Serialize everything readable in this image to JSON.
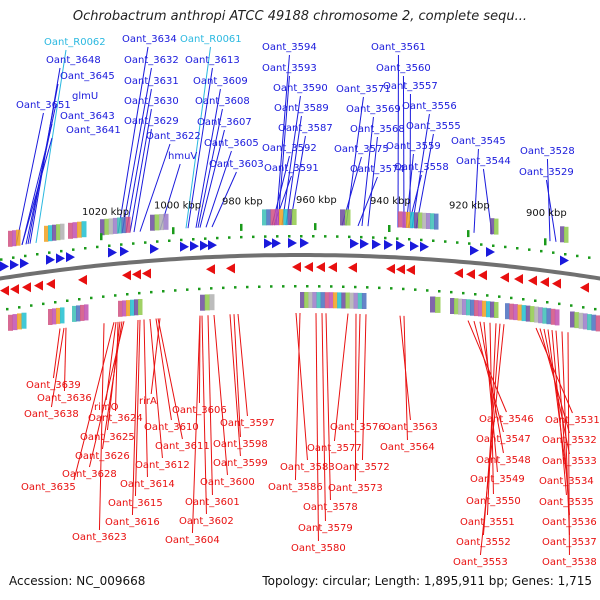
{
  "title": "Ochrobactrum anthropi ATCC 49188 chromosome 2, complete sequ...",
  "footer": {
    "accession": "Accession: NC_009668",
    "summary": "Topology: circular; Length: 1,895,911 bp; Genes: 1,715"
  },
  "colors": {
    "forward": "#1a1adc",
    "reverse": "#e81010",
    "rna": "#2ab8e0",
    "backbone": "#707070",
    "tick": "#1a9a1a"
  },
  "scale_labels": [
    "1020 kbp",
    "1000 kbp",
    "980 kbp",
    "960 kbp",
    "940 kbp",
    "920 kbp",
    "900 kbp"
  ],
  "genes_top": [
    {
      "label": "Oant_R0062",
      "kind": "rna"
    },
    {
      "label": "Oant_3648",
      "kind": "forward"
    },
    {
      "label": "Oant_3645",
      "kind": "forward"
    },
    {
      "label": "glmU",
      "kind": "forward"
    },
    {
      "label": "Oant_3651",
      "kind": "forward"
    },
    {
      "label": "Oant_3643",
      "kind": "forward"
    },
    {
      "label": "Oant_3641",
      "kind": "forward"
    },
    {
      "label": "Oant_3634",
      "kind": "forward"
    },
    {
      "label": "Oant_3632",
      "kind": "forward"
    },
    {
      "label": "Oant_3631",
      "kind": "forward"
    },
    {
      "label": "Oant_3630",
      "kind": "forward"
    },
    {
      "label": "Oant_3629",
      "kind": "forward"
    },
    {
      "label": "Oant_3622",
      "kind": "forward"
    },
    {
      "label": "hmuV",
      "kind": "forward"
    },
    {
      "label": "Oant_R0061",
      "kind": "rna"
    },
    {
      "label": "Oant_3613",
      "kind": "forward"
    },
    {
      "label": "Oant_3609",
      "kind": "forward"
    },
    {
      "label": "Oant_3608",
      "kind": "forward"
    },
    {
      "label": "Oant_3607",
      "kind": "forward"
    },
    {
      "label": "Oant_3605",
      "kind": "forward"
    },
    {
      "label": "Oant_3603",
      "kind": "forward"
    },
    {
      "label": "Oant_3594",
      "kind": "forward"
    },
    {
      "label": "Oant_3593",
      "kind": "forward"
    },
    {
      "label": "Oant_3590",
      "kind": "forward"
    },
    {
      "label": "Oant_3589",
      "kind": "forward"
    },
    {
      "label": "Oant_3587",
      "kind": "forward"
    },
    {
      "label": "Oant_3592",
      "kind": "forward"
    },
    {
      "label": "Oant_3591",
      "kind": "forward"
    },
    {
      "label": "Oant_3571",
      "kind": "forward"
    },
    {
      "label": "Oant_3569",
      "kind": "forward"
    },
    {
      "label": "Oant_3568",
      "kind": "forward"
    },
    {
      "label": "Oant_3575",
      "kind": "forward"
    },
    {
      "label": "Oant_3574",
      "kind": "forward"
    },
    {
      "label": "Oant_3561",
      "kind": "forward"
    },
    {
      "label": "Oant_3560",
      "kind": "forward"
    },
    {
      "label": "Oant_3557",
      "kind": "forward"
    },
    {
      "label": "Oant_3556",
      "kind": "forward"
    },
    {
      "label": "Oant_3555",
      "kind": "forward"
    },
    {
      "label": "Oant_3559",
      "kind": "forward"
    },
    {
      "label": "Oant_3558",
      "kind": "forward"
    },
    {
      "label": "Oant_3545",
      "kind": "forward"
    },
    {
      "label": "Oant_3544",
      "kind": "forward"
    },
    {
      "label": "Oant_3528",
      "kind": "forward"
    },
    {
      "label": "Oant_3529",
      "kind": "forward"
    }
  ],
  "genes_bottom": [
    {
      "label": "Oant_3639"
    },
    {
      "label": "Oant_3636"
    },
    {
      "label": "rimO"
    },
    {
      "label": "Oant_3638"
    },
    {
      "label": "Oant_3624"
    },
    {
      "label": "Oant_3625"
    },
    {
      "label": "Oant_3626"
    },
    {
      "label": "Oant_3628"
    },
    {
      "label": "Oant_3635"
    },
    {
      "label": "rirA"
    },
    {
      "label": "Oant_3606"
    },
    {
      "label": "Oant_3610"
    },
    {
      "label": "Oant_3611"
    },
    {
      "label": "Oant_3612"
    },
    {
      "label": "Oant_3614"
    },
    {
      "label": "Oant_3615"
    },
    {
      "label": "Oant_3616"
    },
    {
      "label": "Oant_3623"
    },
    {
      "label": "Oant_3597"
    },
    {
      "label": "Oant_3598"
    },
    {
      "label": "Oant_3599"
    },
    {
      "label": "Oant_3600"
    },
    {
      "label": "Oant_3601"
    },
    {
      "label": "Oant_3602"
    },
    {
      "label": "Oant_3604"
    },
    {
      "label": "Oant_3576"
    },
    {
      "label": "Oant_3577"
    },
    {
      "label": "Oant_3572"
    },
    {
      "label": "Oant_3583"
    },
    {
      "label": "Oant_3586"
    },
    {
      "label": "Oant_3573"
    },
    {
      "label": "Oant_3578"
    },
    {
      "label": "Oant_3579"
    },
    {
      "label": "Oant_3580"
    },
    {
      "label": "Oant_3563"
    },
    {
      "label": "Oant_3564"
    },
    {
      "label": "Oant_3546"
    },
    {
      "label": "Oant_3547"
    },
    {
      "label": "Oant_3548"
    },
    {
      "label": "Oant_3549"
    },
    {
      "label": "Oant_3550"
    },
    {
      "label": "Oant_3551"
    },
    {
      "label": "Oant_3552"
    },
    {
      "label": "Oant_3553"
    },
    {
      "label": "Oant_3531"
    },
    {
      "label": "Oant_3532"
    },
    {
      "label": "Oant_3533"
    },
    {
      "label": "Oant_3534"
    },
    {
      "label": "Oant_3535"
    },
    {
      "label": "Oant_3536"
    },
    {
      "label": "Oant_3537"
    },
    {
      "label": "Oant_3538"
    }
  ]
}
